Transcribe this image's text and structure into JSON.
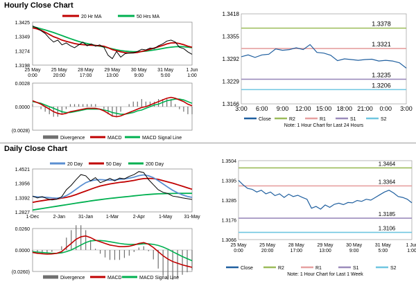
{
  "sections": {
    "hourly_title": "Hourly Close Chart",
    "daily_title": "Daily Close Chart"
  },
  "chart_data": [
    {
      "id": "hourly_price",
      "type": "line",
      "legend": [
        "20 Hr MA",
        "50 Hrs MA"
      ],
      "colors": {
        "close": "#000000",
        "ma20": "#c00000",
        "ma50": "#00b050"
      },
      "ylim": [
        1.3198,
        1.3425
      ],
      "yticks": [
        "1.3425",
        "1.3349",
        "1.3274",
        "1.3198"
      ],
      "xticks": [
        [
          "25 May",
          "0:00"
        ],
        [
          "25 May",
          "20:00"
        ],
        [
          "28 May",
          "17:00"
        ],
        [
          "29 May",
          "13:00"
        ],
        [
          "30 May",
          "9:00"
        ],
        [
          "31 May",
          "5:00"
        ],
        [
          "1 Jun",
          "1:00"
        ]
      ],
      "close": [
        1.3405,
        1.3395,
        1.338,
        1.3365,
        1.334,
        1.332,
        1.333,
        1.3305,
        1.3315,
        1.33,
        1.329,
        1.3305,
        1.332,
        1.33,
        1.331,
        1.3298,
        1.3305,
        1.3292,
        1.325,
        1.3232,
        1.327,
        1.324,
        1.3258,
        1.3262,
        1.3262,
        1.327,
        1.3282,
        1.3278,
        1.3288,
        1.3285,
        1.33,
        1.331,
        1.3325,
        1.333,
        1.332,
        1.3292,
        1.3285,
        1.3268,
        1.3255
      ],
      "ma20": [
        1.3395,
        1.339,
        1.3382,
        1.3372,
        1.336,
        1.3348,
        1.334,
        1.333,
        1.3324,
        1.3318,
        1.3312,
        1.3308,
        1.3306,
        1.3304,
        1.3303,
        1.3302,
        1.33,
        1.3298,
        1.329,
        1.328,
        1.3274,
        1.3268,
        1.3264,
        1.3262,
        1.3263,
        1.3265,
        1.327,
        1.3275,
        1.3282,
        1.3288,
        1.3295,
        1.3302,
        1.331,
        1.3315,
        1.3316,
        1.3312,
        1.3306,
        1.3298,
        1.3292
      ],
      "ma50": [
        1.34,
        1.3396,
        1.339,
        1.3384,
        1.3377,
        1.337,
        1.3362,
        1.3354,
        1.3346,
        1.3338,
        1.333,
        1.3323,
        1.3317,
        1.3312,
        1.3307,
        1.3302,
        1.3298,
        1.3294,
        1.3289,
        1.3284,
        1.3279,
        1.3275,
        1.3272,
        1.327,
        1.3269,
        1.3269,
        1.327,
        1.3272,
        1.3275,
        1.3278,
        1.3282,
        1.3286,
        1.329,
        1.3293,
        1.3295,
        1.3296,
        1.3295,
        1.3293,
        1.329
      ]
    },
    {
      "id": "hourly_macd",
      "type": "line",
      "legend": [
        "Divergence",
        "MACD",
        "MACD Signal Line"
      ],
      "colors": {
        "divergence": "#707070",
        "macd": "#c00000",
        "signal": "#00b050"
      },
      "ylim": [
        -0.0028,
        0.0028
      ],
      "yticks": [
        "0.0028",
        "0.0000",
        "(0.0028)"
      ],
      "macd": [
        0.0007,
        0.0005,
        0.0003,
        0.0,
        -0.0003,
        -0.0006,
        -0.0008,
        -0.0009,
        -0.0008,
        -0.0006,
        -0.0005,
        -0.0004,
        -0.0003,
        -0.0002,
        -0.0002,
        -0.0002,
        -0.0003,
        -0.0005,
        -0.0008,
        -0.0011,
        -0.0012,
        -0.0011,
        -0.0009,
        -0.0007,
        -0.0005,
        -0.0003,
        -0.0001,
        0.0,
        0.0002,
        0.0004,
        0.0006,
        0.0008,
        0.001,
        0.0011,
        0.001,
        0.0008,
        0.0006,
        0.0003,
        0.0001
      ],
      "signal": [
        0.0006,
        0.0005,
        0.0004,
        0.0002,
        0.0,
        -0.0002,
        -0.0004,
        -0.0006,
        -0.0007,
        -0.0007,
        -0.0006,
        -0.0005,
        -0.0004,
        -0.0003,
        -0.0003,
        -0.0003,
        -0.0003,
        -0.0004,
        -0.0005,
        -0.0007,
        -0.0008,
        -0.0009,
        -0.0009,
        -0.0008,
        -0.0007,
        -0.0005,
        -0.0004,
        -0.0002,
        0.0,
        0.0002,
        0.0003,
        0.0005,
        0.0007,
        0.0008,
        0.0009,
        0.0009,
        0.0008,
        0.0006,
        0.0004
      ]
    },
    {
      "id": "hourly_24h",
      "type": "line",
      "colors": {
        "close": "#1f5f9f",
        "r2": "#9bbb59",
        "r1": "#e6a0a0",
        "s1": "#9b8bbb",
        "s2": "#6fc6e0"
      },
      "ylim": [
        1.3166,
        1.3418
      ],
      "yticks": [
        "1.3418",
        "1.3355",
        "1.3292",
        "1.3229",
        "1.3166"
      ],
      "xticks": [
        "3:00",
        "6:00",
        "9:00",
        "12:00",
        "15:00",
        "18:00",
        "21:00",
        "0:00",
        "3:00"
      ],
      "levels": {
        "R2": 1.3378,
        "R1": 1.3321,
        "S1": 1.3235,
        "S2": 1.3206
      },
      "level_labels": {
        "R2": "1.3378",
        "R1": "1.3321",
        "S1": "1.3235",
        "S2": "1.3206"
      },
      "legend": [
        "Close",
        "R2",
        "R1",
        "S1",
        "S2"
      ],
      "note": "Note: 1 Hour Chart for Last 24 Hours",
      "close": [
        1.3298,
        1.3303,
        1.3296,
        1.3303,
        1.3305,
        1.332,
        1.3316,
        1.3318,
        1.3323,
        1.3318,
        1.3332,
        1.331,
        1.3308,
        1.3302,
        1.3287,
        1.3292,
        1.329,
        1.3288,
        1.329,
        1.3291,
        1.3286,
        1.3288,
        1.3286,
        1.3281,
        1.3266
      ]
    },
    {
      "id": "daily_price",
      "type": "line",
      "legend": [
        "20 Day",
        "50 Day",
        "200 Day"
      ],
      "colors": {
        "close": "#000000",
        "ma20": "#5b8fd1",
        "ma50": "#c00000",
        "ma200": "#00b050"
      },
      "ylim": [
        1.2827,
        1.4521
      ],
      "yticks": [
        "1.4521",
        "1.3956",
        "1.3392",
        "1.2827"
      ],
      "xticks": [
        "1-Dec",
        "2-Jan",
        "31-Jan",
        "1-Mar",
        "2-Apr",
        "1-May",
        "31-May"
      ],
      "close": [
        1.345,
        1.338,
        1.343,
        1.335,
        1.33,
        1.333,
        1.342,
        1.37,
        1.388,
        1.41,
        1.43,
        1.425,
        1.405,
        1.418,
        1.398,
        1.405,
        1.415,
        1.405,
        1.416,
        1.413,
        1.423,
        1.43,
        1.442,
        1.438,
        1.41,
        1.39,
        1.37,
        1.36,
        1.355,
        1.345,
        1.342,
        1.338,
        1.335,
        1.332
      ],
      "ma20": [
        1.344,
        1.342,
        1.341,
        1.34,
        1.338,
        1.337,
        1.339,
        1.347,
        1.358,
        1.372,
        1.386,
        1.398,
        1.405,
        1.409,
        1.41,
        1.409,
        1.408,
        1.409,
        1.411,
        1.413,
        1.416,
        1.42,
        1.426,
        1.429,
        1.425,
        1.418,
        1.406,
        1.393,
        1.38,
        1.368,
        1.358,
        1.35,
        1.344,
        1.34
      ],
      "ma50": [
        1.32,
        1.324,
        1.327,
        1.33,
        1.332,
        1.334,
        1.337,
        1.34,
        1.345,
        1.351,
        1.358,
        1.365,
        1.372,
        1.379,
        1.385,
        1.389,
        1.393,
        1.396,
        1.399,
        1.401,
        1.404,
        1.407,
        1.411,
        1.414,
        1.415,
        1.414,
        1.411,
        1.406,
        1.401,
        1.396,
        1.39,
        1.384,
        1.378,
        1.372
      ],
      "ma200": [
        1.29,
        1.293,
        1.296,
        1.299,
        1.302,
        1.305,
        1.308,
        1.311,
        1.314,
        1.317,
        1.32,
        1.323,
        1.326,
        1.3285,
        1.331,
        1.3335,
        1.336,
        1.338,
        1.34,
        1.342,
        1.344,
        1.346,
        1.348,
        1.35,
        1.3515,
        1.353,
        1.354,
        1.3545,
        1.355,
        1.3555,
        1.3558,
        1.356,
        1.356,
        1.356
      ]
    },
    {
      "id": "daily_macd",
      "type": "line",
      "legend": [
        "Divergence",
        "MACD",
        "MACD Signal Line"
      ],
      "colors": {
        "divergence": "#707070",
        "macd": "#c00000",
        "signal": "#00b050"
      },
      "ylim": [
        -0.026,
        0.026
      ],
      "yticks": [
        "0.0260",
        "0.0000",
        "(0.0260)"
      ],
      "macd": [
        -0.003,
        -0.004,
        -0.0045,
        -0.005,
        -0.0048,
        -0.004,
        -0.002,
        0.003,
        0.008,
        0.013,
        0.016,
        0.017,
        0.015,
        0.012,
        0.01,
        0.008,
        0.006,
        0.005,
        0.004,
        0.004,
        0.0045,
        0.006,
        0.008,
        0.009,
        0.007,
        0.003,
        -0.002,
        -0.007,
        -0.011,
        -0.014,
        -0.016,
        -0.018,
        -0.0195,
        -0.021
      ],
      "signal": [
        -0.002,
        -0.0025,
        -0.003,
        -0.0035,
        -0.004,
        -0.004,
        -0.0035,
        -0.002,
        0.0,
        0.003,
        0.006,
        0.009,
        0.011,
        0.0115,
        0.0115,
        0.011,
        0.01,
        0.009,
        0.008,
        0.0072,
        0.0068,
        0.0068,
        0.007,
        0.0075,
        0.0075,
        0.0068,
        0.0055,
        0.0035,
        0.001,
        -0.002,
        -0.005,
        -0.008,
        -0.0105,
        -0.013
      ]
    },
    {
      "id": "daily_week",
      "type": "line",
      "colors": {
        "close": "#1f5f9f",
        "r2": "#9bbb59",
        "r1": "#e6a0a0",
        "s1": "#9b8bbb",
        "s2": "#6fc6e0"
      },
      "ylim": [
        1.3066,
        1.3504
      ],
      "yticks": [
        "1.3504",
        "1.3395",
        "1.3285",
        "1.3176",
        "1.3066"
      ],
      "xticks": [
        [
          "25 May",
          "0:00"
        ],
        [
          "25 May",
          "20:00"
        ],
        [
          "28 May",
          "17:00"
        ],
        [
          "29 May",
          "13:00"
        ],
        [
          "30 May",
          "9:00"
        ],
        [
          "31 May",
          "5:00"
        ],
        [
          "1 Jun",
          "1:00"
        ]
      ],
      "levels": {
        "R2": 1.3464,
        "R1": 1.3364,
        "S1": 1.3185,
        "S2": 1.3106
      },
      "level_labels": {
        "R2": "1.3464",
        "R1": "1.3364",
        "S1": "1.3185",
        "S2": "1.3106"
      },
      "legend": [
        "Close",
        "R2",
        "R1",
        "S1",
        "S2"
      ],
      "note": "Note: 1 Hour Chart for Last 1 Week",
      "close": [
        1.3395,
        1.337,
        1.335,
        1.3345,
        1.333,
        1.334,
        1.332,
        1.333,
        1.331,
        1.332,
        1.33,
        1.3318,
        1.3305,
        1.3312,
        1.33,
        1.329,
        1.324,
        1.325,
        1.3235,
        1.3258,
        1.3245,
        1.3262,
        1.3268,
        1.326,
        1.3272,
        1.327,
        1.3283,
        1.3278,
        1.329,
        1.3285,
        1.33,
        1.3315,
        1.333,
        1.334,
        1.3325,
        1.3305,
        1.33,
        1.329,
        1.327
      ]
    }
  ]
}
